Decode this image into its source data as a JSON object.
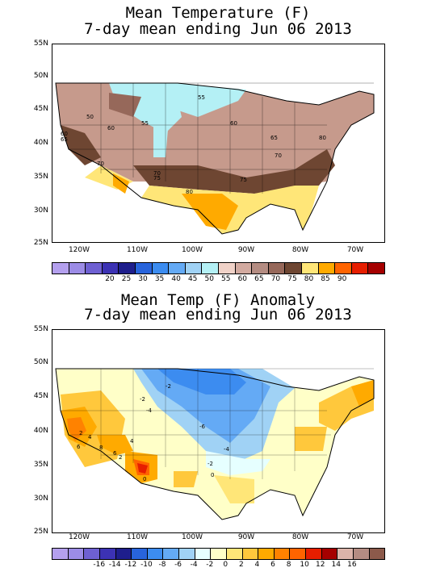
{
  "map1": {
    "title_line1": "Mean Temperature (F)",
    "title_line2": "7-day mean ending Jun 06 2013",
    "lat_labels": [
      "55N",
      "50N",
      "45N",
      "40N",
      "35N",
      "30N",
      "25N"
    ],
    "lon_labels": [
      "120W",
      "110W",
      "100W",
      "90W",
      "80W",
      "70W"
    ],
    "contour_labels": [
      "50",
      "55",
      "60",
      "55",
      "60",
      "65",
      "70",
      "75",
      "80",
      "60",
      "65",
      "70",
      "75",
      "80",
      "70",
      "75",
      "55",
      "70",
      "65"
    ],
    "colorbar_labels": [
      "20",
      "25",
      "30",
      "35",
      "40",
      "45",
      "50",
      "55",
      "60",
      "65",
      "70",
      "75",
      "80",
      "85",
      "90"
    ],
    "colorbar_colors": [
      "#b4a0ee",
      "#9c8ce6",
      "#6e60d2",
      "#3c32b4",
      "#1e1e8c",
      "#2864dc",
      "#3c8cf0",
      "#64aaf5",
      "#a0d2f5",
      "#b4f0f5",
      "#f0d2c8",
      "#d2aaa0",
      "#b48c82",
      "#96685a",
      "#6e4632",
      "#ffe678",
      "#ffaa00",
      "#ff6400",
      "#e61e00",
      "#a50000"
    ]
  },
  "map2": {
    "title_line1": "Mean Temp (F) Anomaly",
    "title_line2": "7-day mean ending Jun 06 2013",
    "lat_labels": [
      "55N",
      "50N",
      "45N",
      "40N",
      "35N",
      "30N",
      "25N"
    ],
    "lon_labels": [
      "120W",
      "110W",
      "100W",
      "90W",
      "80W",
      "70W"
    ],
    "contour_labels": [
      "-2",
      "-4",
      "-6",
      "-4",
      "-2",
      "0",
      "2",
      "4",
      "6",
      "8",
      "2",
      "0",
      "4",
      "6",
      "-2"
    ],
    "colorbar_labels": [
      "-16",
      "-14",
      "-12",
      "-10",
      "-8",
      "-6",
      "-4",
      "-2",
      "0",
      "2",
      "4",
      "6",
      "8",
      "10",
      "12",
      "14",
      "16"
    ],
    "colorbar_colors": [
      "#b4a0ee",
      "#9c8ce6",
      "#6e60d2",
      "#3c32b4",
      "#1e1e8c",
      "#2864dc",
      "#3c8cf0",
      "#64aaf5",
      "#a0d2f5",
      "#e6ffff",
      "#ffffc8",
      "#ffe678",
      "#ffc83c",
      "#ffaa00",
      "#ff8200",
      "#ff6400",
      "#e61e00",
      "#a50000",
      "#dcb4aa",
      "#b48c82",
      "#8c5a4b"
    ]
  }
}
